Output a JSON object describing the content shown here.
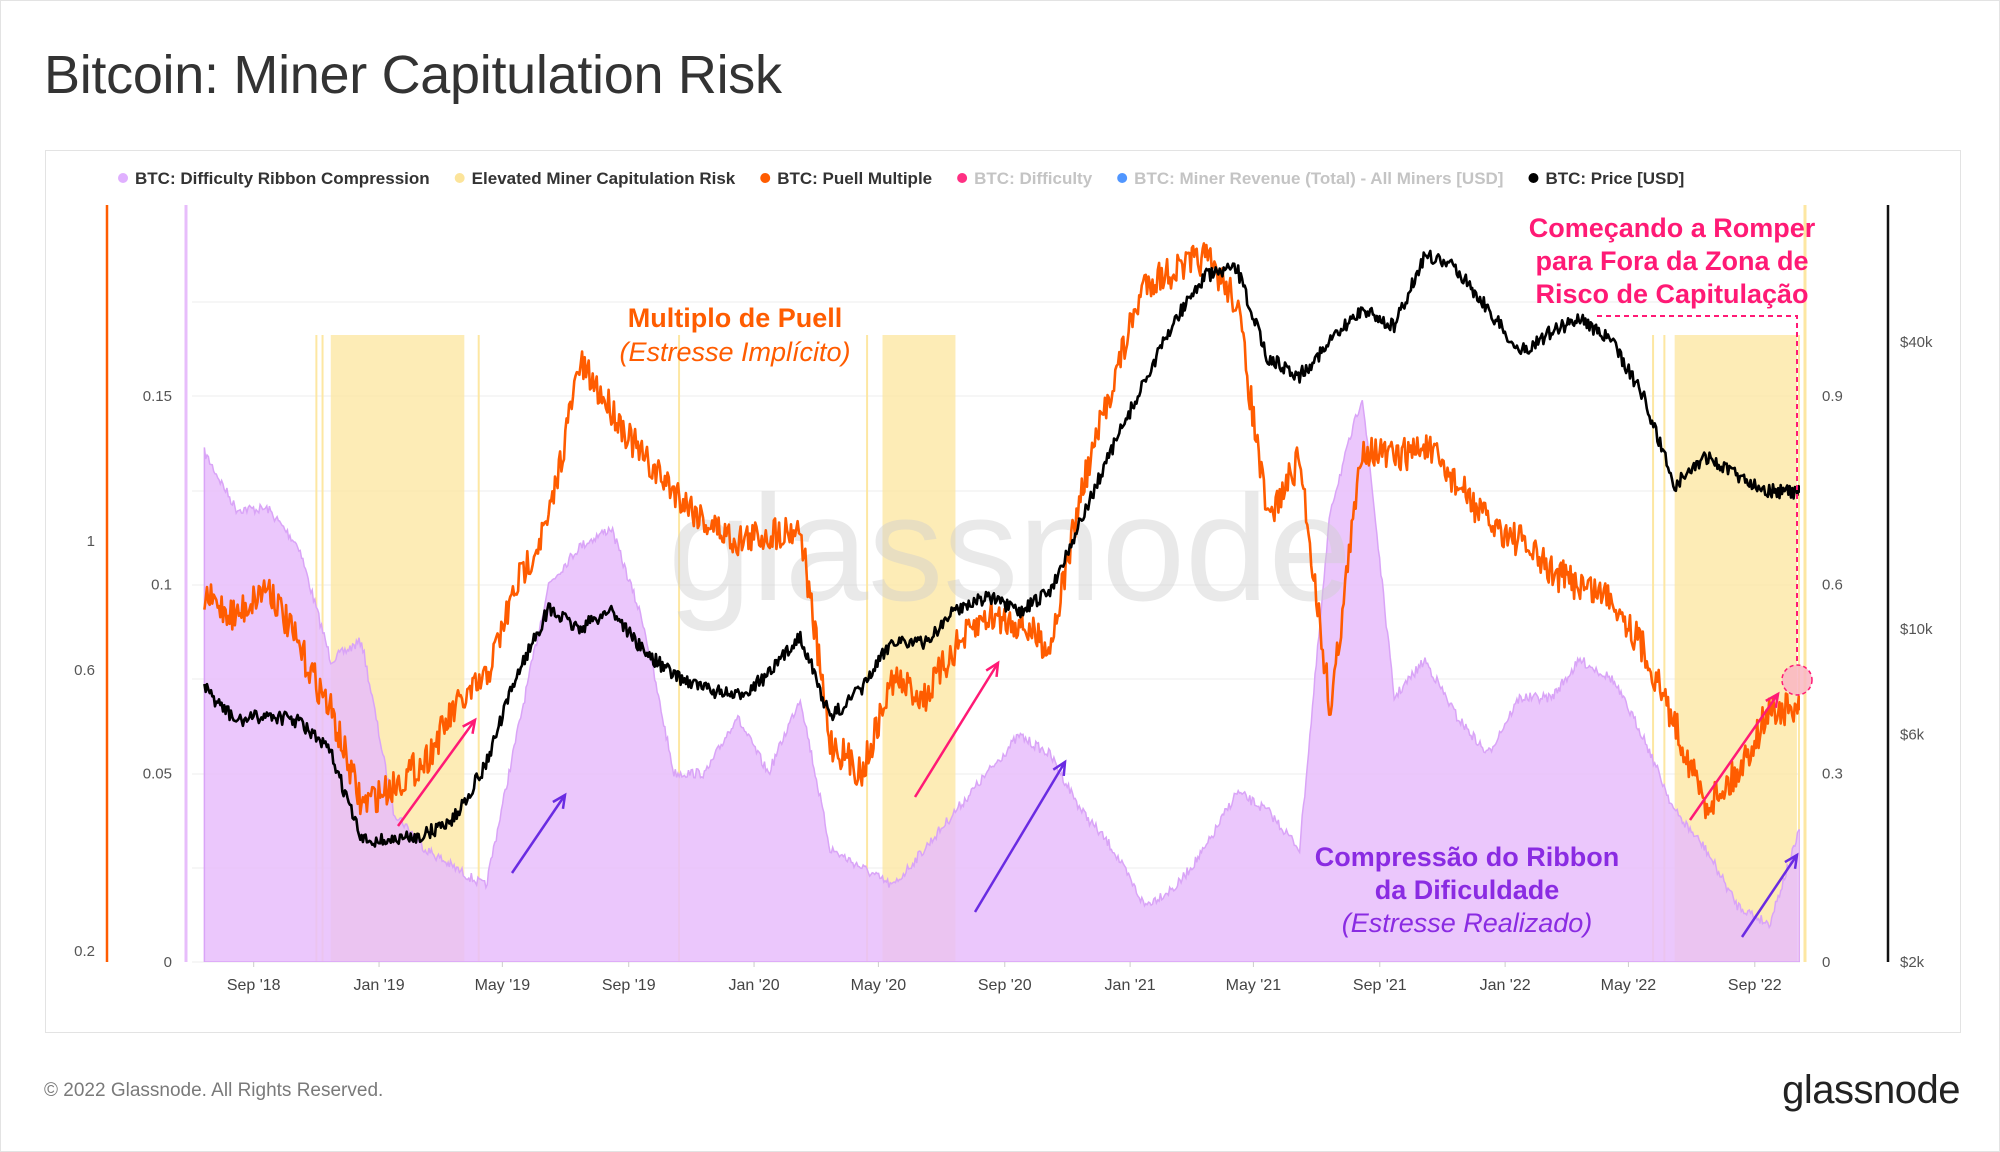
{
  "title": "Bitcoin: Miner Capitulation Risk",
  "footer": "© 2022 Glassnode. All Rights Reserved.",
  "brand": "glassnode",
  "watermark": "glassnode",
  "legend": [
    {
      "label": "BTC: Difficulty Ribbon Compression",
      "color": "#e0b0ff",
      "dim": false
    },
    {
      "label": "Elevated Miner Capitulation Risk",
      "color": "#fce49a",
      "dim": false
    },
    {
      "label": "BTC: Puell Multiple",
      "color": "#ff5c00",
      "dim": false
    },
    {
      "label": "BTC: Difficulty",
      "color": "#ff1a75",
      "dim": true
    },
    {
      "label": "BTC: Miner Revenue (Total) - All Miners [USD]",
      "color": "#3d8bff",
      "dim": true
    },
    {
      "label": "BTC: Price [USD]",
      "color": "#000000",
      "dim": false
    }
  ],
  "annotations": {
    "puell_title": "Multiplo de Puell",
    "puell_sub": "(Estresse Implícito)",
    "ribbon_title_1": "Compressão do Ribbon",
    "ribbon_title_2": "da Dificuldade",
    "ribbon_sub": "(Estresse Realizado)",
    "break_1": "Começando a Romper",
    "break_2": "para Fora da Zona de",
    "break_3": "Risco de Capitulação"
  },
  "chart_data": {
    "type": "line",
    "x_ticks": [
      "Sep '18",
      "Jan '19",
      "May '19",
      "Sep '19",
      "Jan '20",
      "May '20",
      "Sep '20",
      "Jan '21",
      "May '21",
      "Sep '21",
      "Jan '22",
      "May '22",
      "Sep '22"
    ],
    "axes": {
      "far_left": {
        "ticks": [
          "0.2",
          "0.6",
          "1"
        ],
        "color": "#ff5c00"
      },
      "ribbon_left": {
        "ticks": [
          "0",
          "0.05",
          "0.1",
          "0.15"
        ],
        "range": [
          0,
          0.2
        ]
      },
      "puell_right": {
        "ticks": [
          "0",
          "0.3",
          "0.6",
          "0.9"
        ],
        "range": [
          0,
          1.2
        ]
      },
      "price_right": {
        "ticks": [
          "$2k",
          "$6k",
          "$10k",
          "$40k"
        ],
        "scale": "log"
      }
    },
    "capitulation_zones": [
      [
        "2018-11-15",
        "2019-03-25"
      ],
      [
        "2020-05-05",
        "2020-07-15"
      ],
      [
        "2022-06-15",
        "2022-10-12"
      ]
    ],
    "series": [
      {
        "name": "BTC: Difficulty Ribbon Compression",
        "axis": "ribbon_left",
        "dates": [
          "2018-07",
          "2018-08",
          "2018-09",
          "2018-10",
          "2018-11",
          "2018-12",
          "2019-01",
          "2019-02",
          "2019-03",
          "2019-04",
          "2019-05",
          "2019-06",
          "2019-07",
          "2019-08",
          "2019-09",
          "2019-10",
          "2019-11",
          "2019-12",
          "2020-01",
          "2020-02",
          "2020-03",
          "2020-04",
          "2020-05",
          "2020-06",
          "2020-07",
          "2020-08",
          "2020-09",
          "2020-10",
          "2020-11",
          "2020-12",
          "2021-01",
          "2021-02",
          "2021-03",
          "2021-04",
          "2021-05",
          "2021-06",
          "2021-07",
          "2021-08",
          "2021-09",
          "2021-10",
          "2021-11",
          "2021-12",
          "2022-01",
          "2022-02",
          "2022-03",
          "2022-04",
          "2022-05",
          "2022-06",
          "2022-07",
          "2022-08",
          "2022-09",
          "2022-10"
        ],
        "values": [
          0.135,
          0.12,
          0.12,
          0.11,
          0.08,
          0.085,
          0.04,
          0.03,
          0.025,
          0.02,
          0.06,
          0.1,
          0.11,
          0.115,
          0.09,
          0.05,
          0.05,
          0.065,
          0.05,
          0.07,
          0.03,
          0.025,
          0.02,
          0.03,
          0.04,
          0.05,
          0.06,
          0.055,
          0.04,
          0.03,
          0.015,
          0.02,
          0.03,
          0.045,
          0.04,
          0.03,
          0.12,
          0.15,
          0.07,
          0.08,
          0.065,
          0.055,
          0.07,
          0.07,
          0.08,
          0.075,
          0.06,
          0.04,
          0.03,
          0.015,
          0.01,
          0.035
        ]
      },
      {
        "name": "BTC: Puell Multiple",
        "axis": "puell_right",
        "dates": [
          "2018-07",
          "2018-08",
          "2018-09",
          "2018-10",
          "2018-11",
          "2018-12",
          "2019-01",
          "2019-02",
          "2019-03",
          "2019-04",
          "2019-05",
          "2019-06",
          "2019-07",
          "2019-08",
          "2019-09",
          "2019-10",
          "2019-11",
          "2019-12",
          "2020-01",
          "2020-02",
          "2020-03",
          "2020-04",
          "2020-05",
          "2020-06",
          "2020-07",
          "2020-08",
          "2020-09",
          "2020-10",
          "2020-11",
          "2020-12",
          "2021-01",
          "2021-02",
          "2021-03",
          "2021-04",
          "2021-05",
          "2021-06",
          "2021-07",
          "2021-08",
          "2021-09",
          "2021-10",
          "2021-11",
          "2021-12",
          "2022-01",
          "2022-02",
          "2022-03",
          "2022-04",
          "2022-05",
          "2022-06",
          "2022-07",
          "2022-08",
          "2022-09",
          "2022-10"
        ],
        "values": [
          0.58,
          0.55,
          0.6,
          0.5,
          0.4,
          0.25,
          0.28,
          0.32,
          0.4,
          0.45,
          0.6,
          0.7,
          0.95,
          0.88,
          0.8,
          0.75,
          0.7,
          0.67,
          0.68,
          0.69,
          0.35,
          0.3,
          0.45,
          0.42,
          0.5,
          0.55,
          0.54,
          0.5,
          0.75,
          0.92,
          1.08,
          1.1,
          1.12,
          1.05,
          0.7,
          0.8,
          0.4,
          0.82,
          0.8,
          0.82,
          0.76,
          0.7,
          0.67,
          0.62,
          0.6,
          0.58,
          0.5,
          0.38,
          0.25,
          0.3,
          0.4,
          0.4
        ]
      },
      {
        "name": "BTC: Price [USD]",
        "axis": "price_right",
        "dates": [
          "2018-07",
          "2018-08",
          "2018-09",
          "2018-10",
          "2018-11",
          "2018-12",
          "2019-01",
          "2019-02",
          "2019-03",
          "2019-04",
          "2019-05",
          "2019-06",
          "2019-07",
          "2019-08",
          "2019-09",
          "2019-10",
          "2019-11",
          "2019-12",
          "2020-01",
          "2020-02",
          "2020-03",
          "2020-04",
          "2020-05",
          "2020-06",
          "2020-07",
          "2020-08",
          "2020-09",
          "2020-10",
          "2020-11",
          "2020-12",
          "2021-01",
          "2021-02",
          "2021-03",
          "2021-04",
          "2021-05",
          "2021-06",
          "2021-07",
          "2021-08",
          "2021-09",
          "2021-10",
          "2021-11",
          "2021-12",
          "2022-01",
          "2022-02",
          "2022-03",
          "2022-04",
          "2022-05",
          "2022-06",
          "2022-07",
          "2022-08",
          "2022-09",
          "2022-10"
        ],
        "values": [
          7500,
          6400,
          6600,
          6400,
          5500,
          3600,
          3600,
          3700,
          4000,
          5200,
          8000,
          11000,
          10000,
          11000,
          9000,
          8000,
          7500,
          7200,
          8000,
          9700,
          6500,
          7500,
          9500,
          9300,
          11000,
          11700,
          10800,
          12000,
          17000,
          24000,
          33000,
          45000,
          55000,
          57000,
          37000,
          34000,
          40000,
          47000,
          43000,
          61000,
          57000,
          47000,
          38000,
          42000,
          45000,
          40000,
          31000,
          20000,
          23000,
          21000,
          19500,
          19300
        ]
      }
    ]
  }
}
